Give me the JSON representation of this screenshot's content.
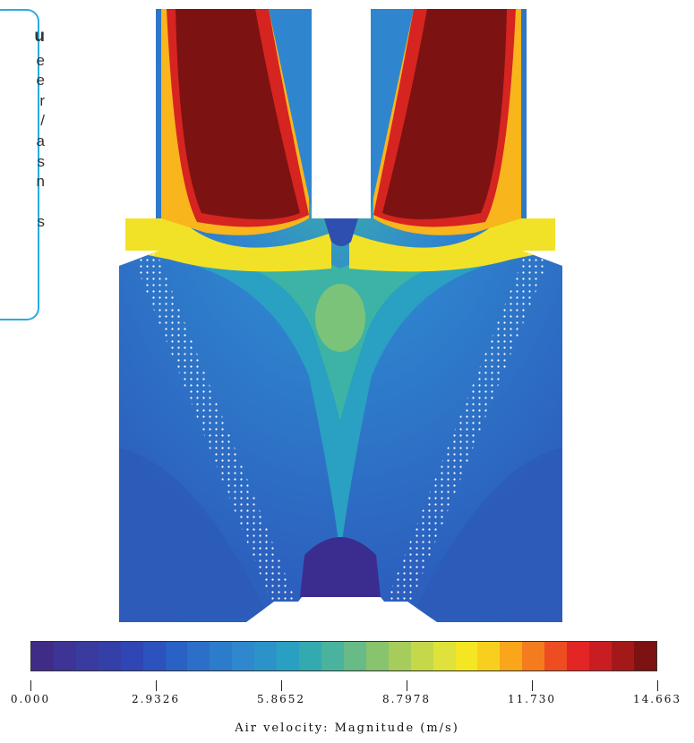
{
  "background_text": {
    "letters": [
      "u",
      "e",
      "e",
      "r",
      "/",
      "a",
      "s",
      "n",
      "",
      "s"
    ]
  },
  "plot": {
    "contour_colors": [
      "#3b2d8f",
      "#2f4fb0",
      "#2c68c4",
      "#2f86cf",
      "#2aa0c2",
      "#3db3a6",
      "#7cc37a",
      "#bcd650",
      "#f2e227",
      "#f9b51c",
      "#f3581e",
      "#d62421",
      "#7d1212"
    ]
  },
  "colorbar": {
    "colors": [
      "#402c87",
      "#3d3495",
      "#3a3b9f",
      "#343fa8",
      "#2f46b4",
      "#2b52bd",
      "#2961c4",
      "#2b6fc8",
      "#2d7ccb",
      "#2f88ce",
      "#2b93c8",
      "#29a0c2",
      "#33aab0",
      "#4ab39e",
      "#68ba86",
      "#88c36e",
      "#a6cd5c",
      "#c4d84a",
      "#dee23a",
      "#f5e623",
      "#f8cf1e",
      "#f9a61b",
      "#f47c1e",
      "#ee4d22",
      "#e32525",
      "#c81e22",
      "#a31919",
      "#7d1212"
    ],
    "ticks": [
      "0.000",
      "2.9326",
      "5.8652",
      "8.7978",
      "11.730",
      "14.663"
    ],
    "title": "Air velocity: Magnitude (m/s)"
  }
}
